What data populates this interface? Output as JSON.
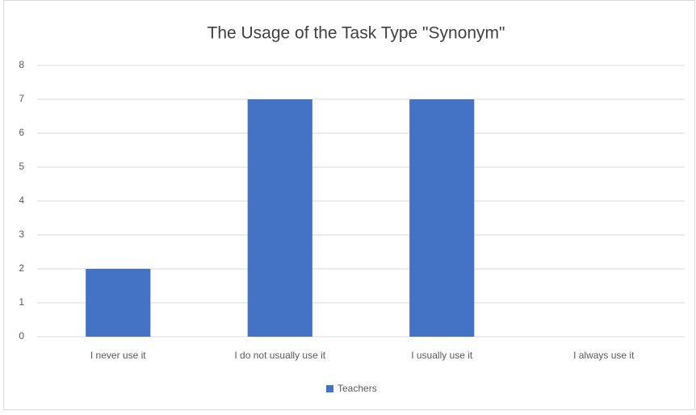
{
  "chart_data": {
    "type": "bar",
    "title": "The Usage of the Task Type \"Synonym\"",
    "categories": [
      "I never use it",
      "I do not usually use it",
      "I usually use it",
      "I always use it"
    ],
    "series": [
      {
        "name": "Teachers",
        "color": "#4472c4",
        "values": [
          2,
          7,
          7,
          0
        ]
      }
    ],
    "ylim": [
      0,
      8
    ],
    "yticks": [
      0,
      1,
      2,
      3,
      4,
      5,
      6,
      7,
      8
    ],
    "grid": true,
    "legend": "bottom"
  }
}
